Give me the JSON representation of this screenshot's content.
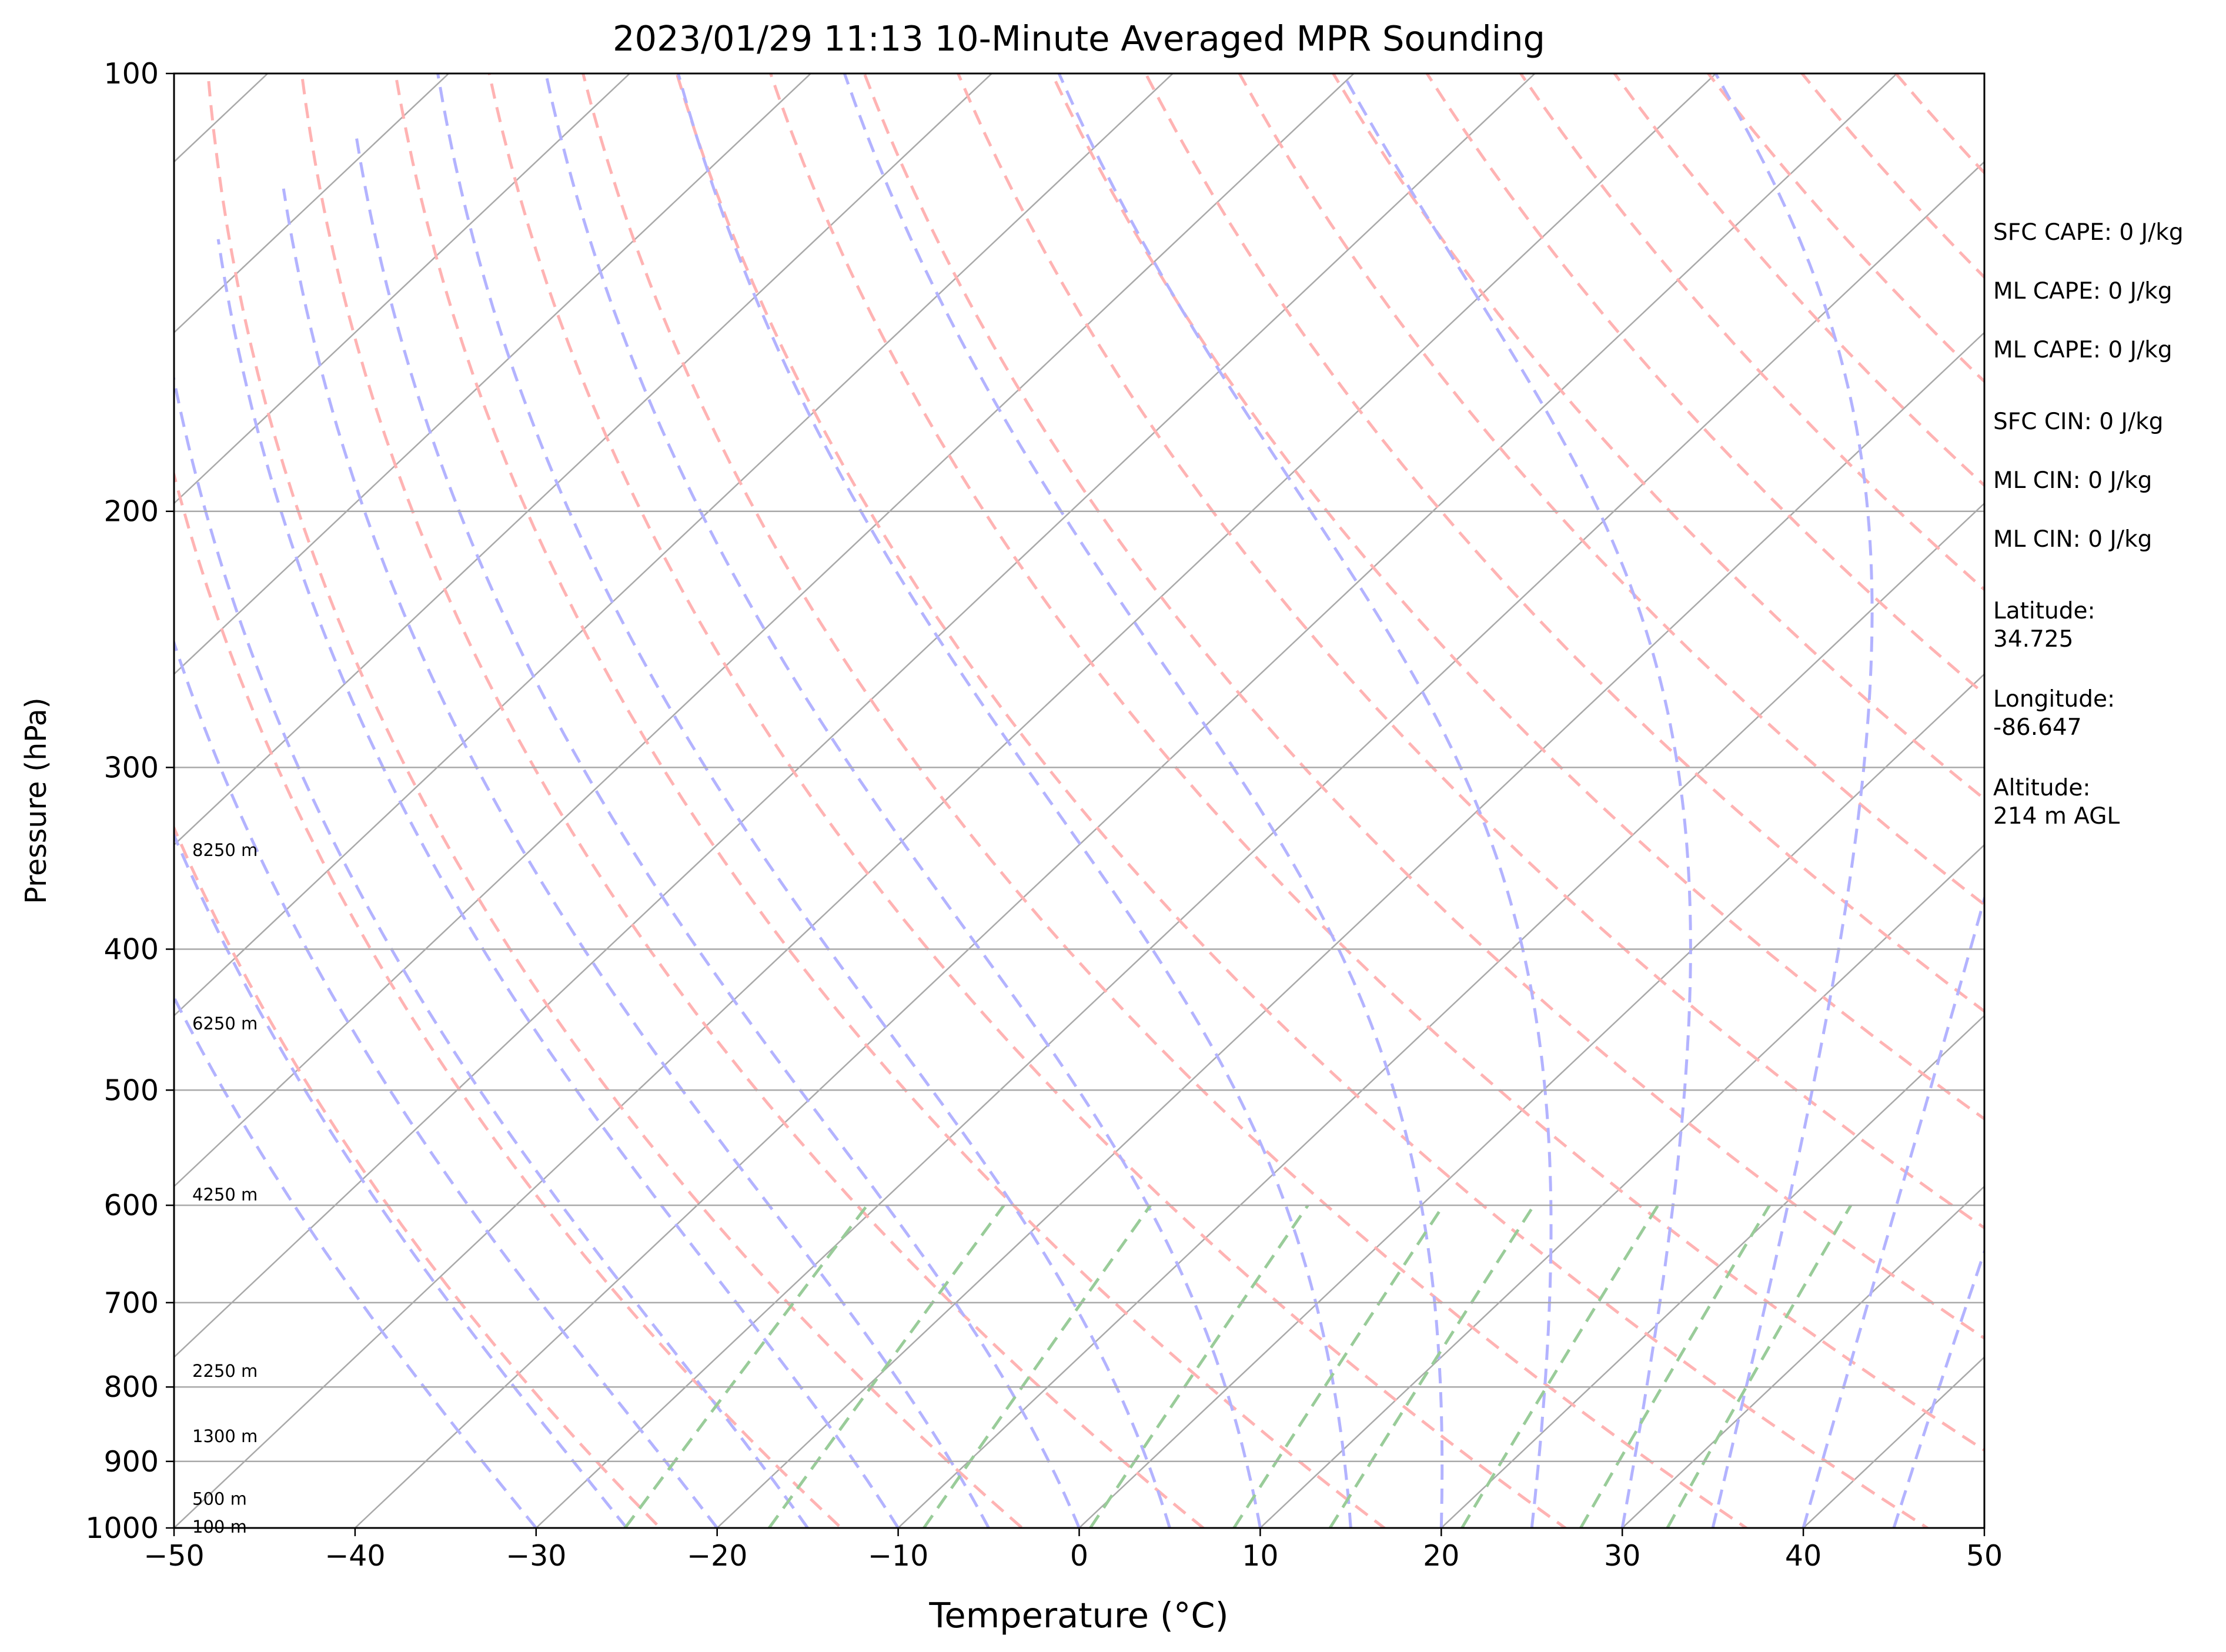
{
  "chart_data": {
    "type": "line",
    "title": "2023/01/29 11:13 10-Minute Averaged MPR Sounding",
    "xlabel": "Temperature (°C)",
    "ylabel": "Pressure (hPa)",
    "xlim": [
      -50,
      50
    ],
    "ylim": [
      1000,
      100
    ],
    "y_scale": "log",
    "skew_t": true,
    "grid": true,
    "x_ticks": [
      -50,
      -40,
      -30,
      -20,
      -10,
      0,
      10,
      20,
      30,
      40,
      50
    ],
    "x_tick_labels": [
      "−50",
      "−40",
      "−30",
      "−20",
      "−10",
      "0",
      "10",
      "20",
      "30",
      "40",
      "50"
    ],
    "y_ticks": [
      1000,
      900,
      800,
      700,
      600,
      500,
      400,
      300,
      200,
      100
    ],
    "y_tick_labels": [
      "1000",
      "900",
      "800",
      "700",
      "600",
      "500",
      "400",
      "300",
      "200",
      "100"
    ],
    "height_labels": [
      {
        "p": 998,
        "text": "100 m"
      },
      {
        "p": 955,
        "text": "500 m"
      },
      {
        "p": 865,
        "text": "1300 m"
      },
      {
        "p": 780,
        "text": "2250 m"
      },
      {
        "p": 590,
        "text": "4250 m"
      },
      {
        "p": 450,
        "text": "6250 m"
      },
      {
        "p": 342,
        "text": "8250 m"
      }
    ],
    "series": [
      {
        "key": "temperature",
        "color": "#ff0000",
        "points": [
          [
            1000,
            7.3
          ],
          [
            985,
            8.9
          ],
          [
            965,
            10.3
          ],
          [
            945,
            11.2
          ],
          [
            925,
            11.6
          ],
          [
            900,
            12.1
          ],
          [
            880,
            12.0
          ],
          [
            860,
            11.6
          ],
          [
            840,
            11.2
          ],
          [
            820,
            10.4
          ],
          [
            800,
            9.4
          ],
          [
            780,
            8.2
          ],
          [
            760,
            7.0
          ],
          [
            740,
            6.3
          ],
          [
            720,
            5.4
          ],
          [
            700,
            4.4
          ],
          [
            680,
            3.8
          ],
          [
            660,
            3.2
          ],
          [
            640,
            2.4
          ],
          [
            620,
            1.6
          ],
          [
            600,
            0.6
          ],
          [
            580,
            -0.5
          ],
          [
            560,
            -1.6
          ],
          [
            540,
            -2.8
          ],
          [
            520,
            -4.0
          ],
          [
            500,
            -5.3
          ],
          [
            480,
            -6.7
          ],
          [
            460,
            -8.1
          ],
          [
            440,
            -9.6
          ],
          [
            420,
            -11.1
          ],
          [
            400,
            -12.8
          ],
          [
            380,
            -14.7
          ],
          [
            360,
            -16.5
          ],
          [
            340,
            -18.8
          ],
          [
            320,
            -21.4
          ],
          [
            300,
            -23.9
          ],
          [
            285,
            -26.2
          ],
          [
            270,
            -28.4
          ]
        ]
      },
      {
        "key": "dewpoint",
        "color": "#008000",
        "points": [
          [
            1000,
            4.4
          ],
          [
            990,
            3.6
          ],
          [
            980,
            3.8
          ],
          [
            965,
            4.6
          ],
          [
            950,
            5.4
          ],
          [
            935,
            5.7
          ],
          [
            920,
            5.7
          ],
          [
            900,
            6.0
          ],
          [
            885,
            5.9
          ],
          [
            865,
            5.6
          ],
          [
            850,
            6.0
          ],
          [
            835,
            6.6
          ],
          [
            820,
            6.9
          ],
          [
            810,
            7.0
          ],
          [
            790,
            6.6
          ],
          [
            770,
            6.2
          ],
          [
            750,
            5.4
          ],
          [
            730,
            4.8
          ],
          [
            710,
            4.2
          ],
          [
            690,
            3.4
          ],
          [
            670,
            2.6
          ],
          [
            650,
            1.7
          ],
          [
            630,
            0.9
          ],
          [
            620,
            0.7
          ],
          [
            600,
            -0.2
          ],
          [
            580,
            -1.4
          ],
          [
            560,
            -3.1
          ],
          [
            540,
            -4.6
          ],
          [
            520,
            -5.9
          ],
          [
            500,
            -7.4
          ],
          [
            480,
            -10.0
          ],
          [
            460,
            -13.6
          ],
          [
            440,
            -14.8
          ],
          [
            420,
            -17.0
          ],
          [
            400,
            -18.2
          ],
          [
            380,
            -20.2
          ],
          [
            360,
            -22.0
          ],
          [
            340,
            -23.5
          ],
          [
            330,
            -25.4
          ],
          [
            320,
            -27.3
          ],
          [
            310,
            -29.5
          ],
          [
            300,
            -31.5
          ],
          [
            285,
            -35.5
          ],
          [
            275,
            -38.4
          ],
          [
            265,
            -36.0
          ]
        ]
      },
      {
        "key": "parcel",
        "color": "#000000",
        "points": [
          [
            1000,
            7.3
          ],
          [
            950,
            4.5
          ],
          [
            900,
            1.4
          ],
          [
            850,
            -2.0
          ],
          [
            800,
            -5.9
          ],
          [
            750,
            -10.2
          ],
          [
            700,
            -15.2
          ],
          [
            650,
            -20.6
          ],
          [
            600,
            -26.6
          ],
          [
            550,
            -33.0
          ],
          [
            500,
            -40.0
          ],
          [
            450,
            -47.5
          ],
          [
            400,
            -55.5
          ],
          [
            350,
            -63.5
          ],
          [
            300,
            -72.5
          ],
          [
            270,
            -78.0
          ]
        ]
      }
    ]
  },
  "stats": [
    {
      "key": "sfc_cape",
      "text": "SFC CAPE: 0 J/kg"
    },
    {
      "key": "ml_cape",
      "text": "ML CAPE: 0 J/kg"
    },
    {
      "key": "ml_cape_2",
      "text": "ML CAPE: 0 J/kg"
    },
    {
      "key": "sfc_cin",
      "text": "SFC CIN: 0 J/kg"
    },
    {
      "key": "ml_cin",
      "text": "ML CIN: 0 J/kg"
    },
    {
      "key": "ml_cin_2",
      "text": "ML CIN: 0 J/kg"
    },
    {
      "key": "latitude",
      "text": "Latitude:\n34.725"
    },
    {
      "key": "longitude",
      "text": "Longitude:\n-86.647"
    },
    {
      "key": "altitude",
      "text": "Altitude:\n214 m AGL"
    }
  ],
  "colors": {
    "isotherms": "#a9a9a9",
    "dry_adiabats": "#ffb3b3",
    "moist_adiabats": "#b3b3ff",
    "mixing_ratio": "#99cc99",
    "isobars": "#a9a9a9"
  }
}
